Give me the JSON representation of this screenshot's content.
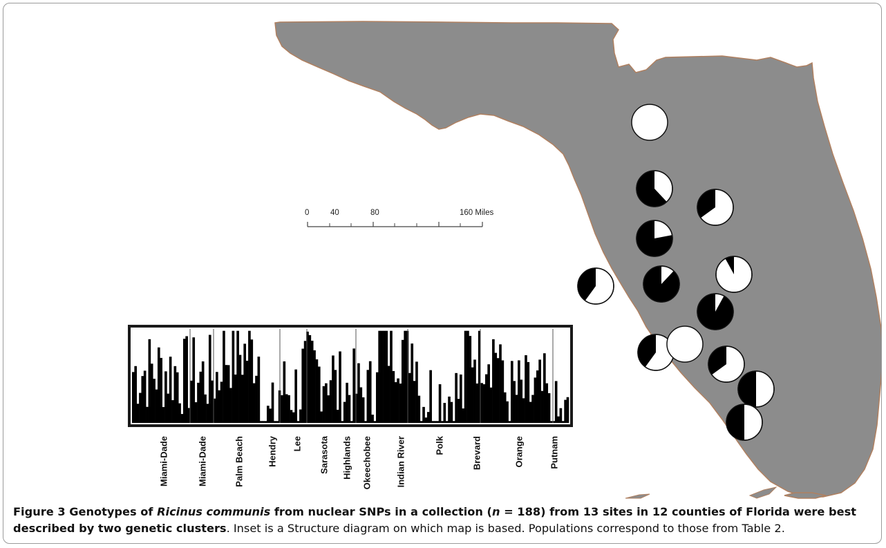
{
  "scale_bar": {
    "ticks": [
      "0",
      "40",
      "80",
      "160 Miles"
    ]
  },
  "structure": {
    "populations": [
      "Miami-Dade",
      "Miami-Dade",
      "Palm Beach",
      "Hendry",
      "Lee",
      "Sarasota",
      "Highlands",
      "Okeechobee",
      "Indian River",
      "Polk",
      "Brevard",
      "Orange",
      "Putnam"
    ],
    "cluster_colors": {
      "cluster1": "#000000",
      "cluster2": "#ffffff"
    },
    "sample_size_total": 188
  },
  "pie_charts": [
    {
      "cluster1_fraction": 0.0
    },
    {
      "cluster1_fraction": 0.62
    },
    {
      "cluster1_fraction": 0.35
    },
    {
      "cluster1_fraction": 0.78
    },
    {
      "cluster1_fraction": 0.4
    },
    {
      "cluster1_fraction": 0.88
    },
    {
      "cluster1_fraction": 0.08
    },
    {
      "cluster1_fraction": 0.92
    },
    {
      "cluster1_fraction": 0.4
    },
    {
      "cluster1_fraction": 0.0
    },
    {
      "cluster1_fraction": 0.35
    },
    {
      "cluster1_fraction": 0.5
    },
    {
      "cluster1_fraction": 0.5
    }
  ],
  "caption": {
    "label": "Figure 3",
    "bold_part1": "Genotypes of ",
    "species": "Ricinus communis",
    "bold_part2": " from nuclear SNPs in a collection (",
    "n_var": "n",
    "bold_part3": " = 188) from 13 sites in 12 counties of Florida were best described by two genetic clusters",
    "normal_text": ". Inset is a Structure diagram on which map is based. Populations correspond to those from Table 2."
  },
  "colors": {
    "land": "#8c8c8c",
    "coast": "#b08060",
    "frame": "#9a9a9a"
  }
}
